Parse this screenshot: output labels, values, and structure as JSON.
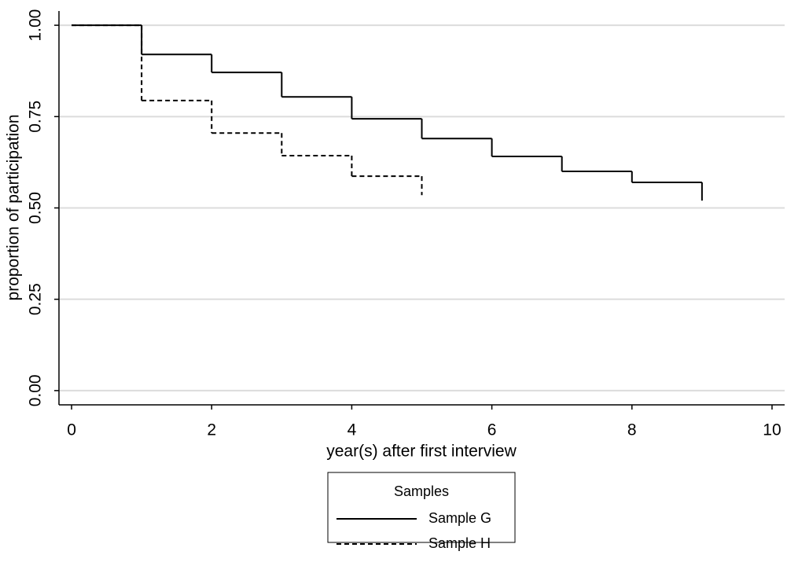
{
  "chart_data": {
    "type": "step",
    "x_label": "year(s) after first interview",
    "y_label": "proportion of participation",
    "legend_title": "Samples",
    "legend_position": "bottom",
    "grid": true,
    "xlim": [
      -0.18,
      10.18
    ],
    "ylim": [
      -0.039,
      1.039
    ],
    "xticks": [
      0,
      2,
      4,
      6,
      8,
      10
    ],
    "yticks": [
      {
        "value": 0,
        "label": "0.00"
      },
      {
        "value": 0.25,
        "label": "0.25"
      },
      {
        "value": 0.5,
        "label": "0.50"
      },
      {
        "value": 0.75,
        "label": "0.75"
      },
      {
        "value": 1,
        "label": "1.00"
      }
    ],
    "series": [
      {
        "name": "Sample G",
        "color": "#000000",
        "dash": false,
        "x": [
          0,
          1,
          2,
          3,
          4,
          5,
          6,
          7,
          8,
          9
        ],
        "values": [
          1.0,
          0.92,
          0.871,
          0.804,
          0.744,
          0.69,
          0.641,
          0.6,
          0.57,
          0.52
        ]
      },
      {
        "name": "Sample H",
        "color": "#000000",
        "dash": true,
        "x": [
          0,
          1,
          2,
          3,
          4,
          5
        ],
        "values": [
          1.0,
          0.794,
          0.705,
          0.643,
          0.587,
          0.535
        ]
      }
    ]
  }
}
